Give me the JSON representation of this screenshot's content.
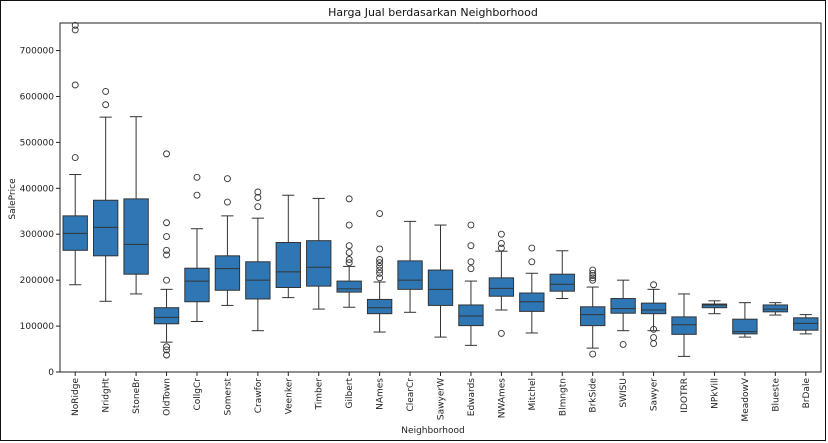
{
  "chart_data": {
    "type": "box",
    "title": "Harga Jual berdasarkan Neighborhood",
    "xlabel": "Neighborhood",
    "ylabel": "SalePrice",
    "ylim": [
      0,
      760000
    ],
    "yticks": [
      0,
      100000,
      200000,
      300000,
      400000,
      500000,
      600000,
      700000
    ],
    "ytick_labels": [
      "0",
      "100000",
      "200000",
      "300000",
      "400000",
      "500000",
      "600000",
      "700000"
    ],
    "box_color": "#2f77b4",
    "line_color": "#333333",
    "categories": [
      "NoRidge",
      "NridgHt",
      "StoneBr",
      "OldTown",
      "CollgCr",
      "Somerst",
      "Crawfor",
      "Veenker",
      "Timber",
      "Gilbert",
      "NAmes",
      "ClearCr",
      "SawyerW",
      "Edwards",
      "NWAmes",
      "Mitchel",
      "Blmngtn",
      "BrkSide",
      "SWISU",
      "Sawyer",
      "IDOTRR",
      "NPkVill",
      "MeadowV",
      "Blueste",
      "BrDale"
    ],
    "boxes": [
      {
        "whislo": 190000,
        "q1": 265000,
        "med": 302000,
        "q3": 340000,
        "whishi": 430000,
        "fliers": [
          467000,
          625000,
          745000,
          755000
        ]
      },
      {
        "whislo": 154000,
        "q1": 253000,
        "med": 315000,
        "q3": 374000,
        "whishi": 555000,
        "fliers": [
          582000,
          611000
        ]
      },
      {
        "whislo": 170000,
        "q1": 213000,
        "med": 278000,
        "q3": 377000,
        "whishi": 556000,
        "fliers": []
      },
      {
        "whislo": 65000,
        "q1": 105000,
        "med": 119000,
        "q3": 140000,
        "whishi": 180000,
        "fliers": [
          475000,
          325000,
          295000,
          265000,
          255000,
          200000,
          55000,
          48000,
          37000
        ]
      },
      {
        "whislo": 110000,
        "q1": 153000,
        "med": 198000,
        "q3": 226000,
        "whishi": 312000,
        "fliers": [
          385000,
          424000
        ]
      },
      {
        "whislo": 145000,
        "q1": 178000,
        "med": 225000,
        "q3": 253000,
        "whishi": 340000,
        "fliers": [
          370000,
          421000
        ]
      },
      {
        "whislo": 90000,
        "q1": 159000,
        "med": 200000,
        "q3": 240000,
        "whishi": 335000,
        "fliers": [
          360000,
          380000,
          392000
        ]
      },
      {
        "whislo": 162000,
        "q1": 184000,
        "med": 218000,
        "q3": 282000,
        "whishi": 385000,
        "fliers": []
      },
      {
        "whislo": 137000,
        "q1": 187000,
        "med": 228000,
        "q3": 286000,
        "whishi": 378000,
        "fliers": []
      },
      {
        "whislo": 141000,
        "q1": 174000,
        "med": 181000,
        "q3": 198000,
        "whishi": 230000,
        "fliers": [
          238000,
          245000,
          260000,
          275000,
          320000,
          377000
        ]
      },
      {
        "whislo": 87000,
        "q1": 127000,
        "med": 140000,
        "q3": 158000,
        "whishi": 196000,
        "fliers": [
          205000,
          215000,
          222000,
          230000,
          238000,
          245000,
          268000,
          345000
        ]
      },
      {
        "whislo": 130000,
        "q1": 180000,
        "med": 200000,
        "q3": 242000,
        "whishi": 328000,
        "fliers": []
      },
      {
        "whislo": 76000,
        "q1": 145000,
        "med": 180000,
        "q3": 222000,
        "whishi": 320000,
        "fliers": []
      },
      {
        "whislo": 58000,
        "q1": 101000,
        "med": 122000,
        "q3": 146000,
        "whishi": 198000,
        "fliers": [
          225000,
          240000,
          275000,
          320000
        ]
      },
      {
        "whislo": 135000,
        "q1": 165000,
        "med": 182000,
        "q3": 205000,
        "whishi": 263000,
        "fliers": [
          270000,
          280000,
          300000,
          84000
        ]
      },
      {
        "whislo": 85000,
        "q1": 132000,
        "med": 153000,
        "q3": 172000,
        "whishi": 215000,
        "fliers": [
          240000,
          270000
        ]
      },
      {
        "whislo": 160000,
        "q1": 176000,
        "med": 191000,
        "q3": 213000,
        "whishi": 264000,
        "fliers": []
      },
      {
        "whislo": 52000,
        "q1": 101000,
        "med": 125000,
        "q3": 142000,
        "whishi": 185000,
        "fliers": [
          200000,
          205000,
          210000,
          215000,
          222000,
          39000
        ]
      },
      {
        "whislo": 90000,
        "q1": 128000,
        "med": 138000,
        "q3": 160000,
        "whishi": 200000,
        "fliers": [
          60000
        ]
      },
      {
        "whislo": 90000,
        "q1": 127000,
        "med": 135000,
        "q3": 150000,
        "whishi": 180000,
        "fliers": [
          190000,
          62000,
          75000,
          93000
        ]
      },
      {
        "whislo": 34000,
        "q1": 82000,
        "med": 103000,
        "q3": 120000,
        "whishi": 170000,
        "fliers": []
      },
      {
        "whislo": 127000,
        "q1": 140000,
        "med": 146000,
        "q3": 148000,
        "whishi": 155000,
        "fliers": []
      },
      {
        "whislo": 76000,
        "q1": 83000,
        "med": 88000,
        "q3": 115000,
        "whishi": 151000,
        "fliers": []
      },
      {
        "whislo": 124000,
        "q1": 131000,
        "med": 137000,
        "q3": 146000,
        "whishi": 151000,
        "fliers": []
      },
      {
        "whislo": 83000,
        "q1": 91000,
        "med": 106000,
        "q3": 118000,
        "whishi": 125000,
        "fliers": []
      }
    ]
  }
}
